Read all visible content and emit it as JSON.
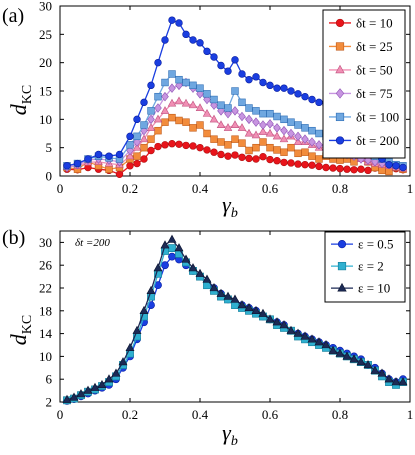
{
  "chart_data": [
    {
      "type": "line",
      "panel_label": "(a)",
      "xlabel": "γ",
      "xlabel_sub": "b",
      "ylabel": "d",
      "ylabel_sub": "KC",
      "xlim": [
        0,
        1
      ],
      "ylim": [
        0,
        30
      ],
      "xticks": [
        0,
        0.2,
        0.4,
        0.6,
        0.8,
        1
      ],
      "xtick_labels": [
        "0",
        "0.2",
        "0.4",
        "0.6",
        "0.8",
        "1"
      ],
      "yticks": [
        0,
        5,
        10,
        15,
        20,
        25,
        30
      ],
      "ytick_labels": [
        "0",
        "5",
        "10",
        "15",
        "20",
        "25",
        "30"
      ],
      "grid": false,
      "legend_position": "top-right",
      "series": [
        {
          "name": "δt = 10",
          "color": "#e8141b",
          "stroke": "#b01010",
          "marker": "circle",
          "x": [
            0.02,
            0.05,
            0.08,
            0.11,
            0.14,
            0.17,
            0.2,
            0.22,
            0.24,
            0.26,
            0.28,
            0.3,
            0.32,
            0.34,
            0.36,
            0.38,
            0.4,
            0.42,
            0.44,
            0.46,
            0.48,
            0.5,
            0.52,
            0.54,
            0.56,
            0.58,
            0.6,
            0.62,
            0.64,
            0.66,
            0.68,
            0.7,
            0.72,
            0.74,
            0.76,
            0.78,
            0.8,
            0.82,
            0.84,
            0.86,
            0.88,
            0.9,
            0.92,
            0.94,
            0.96,
            0.98
          ],
          "y": [
            1.2,
            1.1,
            1.5,
            1.2,
            1.0,
            0.3,
            1.8,
            2.2,
            3.0,
            4.5,
            5.2,
            5.5,
            5.7,
            5.6,
            5.4,
            5.3,
            5.0,
            4.6,
            4.2,
            3.8,
            3.5,
            3.7,
            3.3,
            3.1,
            3.0,
            3.4,
            2.9,
            2.7,
            2.4,
            2.3,
            2.1,
            2.0,
            1.9,
            1.7,
            1.5,
            1.4,
            1.3,
            1.2,
            1.1,
            1.2,
            1.0,
            1.4,
            1.0,
            1.6,
            1.3,
            1.1
          ]
        },
        {
          "name": "δt = 25",
          "color": "#f28c3c",
          "stroke": "#c05a18",
          "marker": "square",
          "x": [
            0.02,
            0.05,
            0.08,
            0.11,
            0.14,
            0.17,
            0.2,
            0.22,
            0.24,
            0.26,
            0.28,
            0.3,
            0.32,
            0.34,
            0.36,
            0.38,
            0.4,
            0.42,
            0.44,
            0.46,
            0.48,
            0.5,
            0.52,
            0.54,
            0.56,
            0.58,
            0.6,
            0.62,
            0.64,
            0.66,
            0.68,
            0.7,
            0.72,
            0.74,
            0.76,
            0.78,
            0.8,
            0.82,
            0.84,
            0.86,
            0.88,
            0.9,
            0.92,
            0.94,
            0.96,
            0.98
          ],
          "y": [
            1.5,
            1.2,
            2.5,
            1.8,
            1.2,
            1.5,
            3.0,
            3.5,
            5.0,
            6.5,
            8.0,
            9.5,
            10.3,
            9.8,
            9.5,
            8.5,
            9.0,
            7.5,
            6.5,
            6.0,
            5.5,
            6.5,
            5.8,
            4.5,
            5.0,
            6.0,
            5.0,
            4.6,
            4.2,
            5.0,
            4.0,
            4.2,
            3.5,
            3.0,
            3.5,
            3.0,
            2.8,
            3.0,
            2.5,
            4.0,
            2.5,
            1.5,
            1.0,
            0.8,
            1.5,
            1.2
          ]
        },
        {
          "name": "δt = 50",
          "color": "#f08fb4",
          "stroke": "#c0507e",
          "marker": "triangle",
          "x": [
            0.02,
            0.05,
            0.08,
            0.11,
            0.14,
            0.17,
            0.2,
            0.22,
            0.24,
            0.26,
            0.28,
            0.3,
            0.32,
            0.34,
            0.36,
            0.38,
            0.4,
            0.42,
            0.44,
            0.46,
            0.48,
            0.5,
            0.52,
            0.54,
            0.56,
            0.58,
            0.6,
            0.62,
            0.64,
            0.66,
            0.68,
            0.7,
            0.72,
            0.74,
            0.76,
            0.78,
            0.8,
            0.82,
            0.84,
            0.86,
            0.88,
            0.9,
            0.92,
            0.94,
            0.96,
            0.98
          ],
          "y": [
            1.6,
            1.8,
            2.4,
            2.5,
            2.2,
            2.0,
            3.5,
            5.0,
            6.5,
            8.5,
            10.0,
            11.5,
            12.8,
            13.2,
            12.8,
            12.5,
            12.0,
            11.0,
            10.0,
            9.0,
            8.5,
            9.0,
            8.5,
            7.5,
            7.2,
            7.8,
            7.5,
            7.0,
            6.5,
            7.0,
            6.0,
            6.0,
            5.5,
            5.0,
            5.0,
            4.5,
            4.0,
            3.8,
            3.5,
            3.0,
            2.5,
            2.2,
            2.0,
            1.8,
            1.5,
            1.3
          ]
        },
        {
          "name": "δt = 75",
          "color": "#c795e0",
          "stroke": "#8e52b5",
          "marker": "diamond",
          "x": [
            0.02,
            0.05,
            0.08,
            0.11,
            0.14,
            0.17,
            0.2,
            0.22,
            0.24,
            0.26,
            0.28,
            0.3,
            0.32,
            0.34,
            0.36,
            0.38,
            0.4,
            0.42,
            0.44,
            0.46,
            0.48,
            0.5,
            0.52,
            0.54,
            0.56,
            0.58,
            0.6,
            0.62,
            0.64,
            0.66,
            0.68,
            0.7,
            0.72,
            0.74,
            0.76,
            0.78,
            0.8,
            0.82,
            0.84,
            0.86,
            0.88,
            0.9,
            0.92,
            0.94,
            0.96,
            0.98
          ],
          "y": [
            1.5,
            2.0,
            2.8,
            3.0,
            2.8,
            2.5,
            4.5,
            6.0,
            8.0,
            10.0,
            12.0,
            14.0,
            15.5,
            16.0,
            16.5,
            15.5,
            14.5,
            13.5,
            12.5,
            11.5,
            11.0,
            11.5,
            10.5,
            10.0,
            9.5,
            9.0,
            9.2,
            8.5,
            8.0,
            7.5,
            7.0,
            6.5,
            6.0,
            5.5,
            5.0,
            4.5,
            4.2,
            3.8,
            3.5,
            3.0,
            2.8,
            2.5,
            2.2,
            2.0,
            1.8,
            1.6
          ]
        },
        {
          "name": "δt = 100",
          "color": "#6fa7e0",
          "stroke": "#2e6db5",
          "marker": "square",
          "x": [
            0.02,
            0.05,
            0.08,
            0.11,
            0.14,
            0.17,
            0.2,
            0.22,
            0.24,
            0.26,
            0.28,
            0.3,
            0.32,
            0.34,
            0.36,
            0.38,
            0.4,
            0.42,
            0.44,
            0.46,
            0.48,
            0.5,
            0.52,
            0.54,
            0.56,
            0.58,
            0.6,
            0.62,
            0.64,
            0.66,
            0.68,
            0.7,
            0.72,
            0.74,
            0.76,
            0.78,
            0.8,
            0.82,
            0.84,
            0.86,
            0.88,
            0.9,
            0.92,
            0.94,
            0.96,
            0.98
          ],
          "y": [
            1.8,
            2.2,
            3.0,
            3.5,
            3.2,
            3.0,
            5.5,
            7.0,
            9.0,
            11.5,
            14.0,
            16.5,
            18.0,
            17.0,
            16.5,
            16.0,
            15.5,
            14.5,
            13.5,
            12.5,
            12.0,
            15.0,
            13.0,
            12.0,
            11.5,
            11.0,
            11.0,
            10.5,
            10.0,
            9.5,
            9.0,
            8.5,
            8.0,
            7.5,
            7.0,
            6.5,
            6.0,
            5.5,
            5.0,
            4.5,
            4.0,
            3.5,
            3.0,
            2.5,
            2.0,
            1.8
          ]
        },
        {
          "name": "δt = 200",
          "color": "#1a3ee0",
          "stroke": "#0a1ea0",
          "marker": "circle",
          "x": [
            0.02,
            0.05,
            0.08,
            0.11,
            0.14,
            0.17,
            0.2,
            0.22,
            0.24,
            0.26,
            0.28,
            0.3,
            0.32,
            0.34,
            0.36,
            0.38,
            0.4,
            0.42,
            0.44,
            0.46,
            0.48,
            0.5,
            0.52,
            0.54,
            0.56,
            0.58,
            0.6,
            0.62,
            0.64,
            0.66,
            0.68,
            0.7,
            0.72,
            0.74,
            0.76,
            0.78,
            0.8,
            0.82,
            0.84,
            0.86,
            0.88,
            0.9,
            0.92,
            0.94,
            0.96,
            0.98
          ],
          "y": [
            1.8,
            2.2,
            3.0,
            3.8,
            3.5,
            3.8,
            7.0,
            10.0,
            13.0,
            16.0,
            20.0,
            24.0,
            27.5,
            27.0,
            25.0,
            24.0,
            23.5,
            22.0,
            21.0,
            19.5,
            18.5,
            20.5,
            18.0,
            17.0,
            17.5,
            16.5,
            16.0,
            15.5,
            15.5,
            15.0,
            14.5,
            14.0,
            13.5,
            13.0,
            12.5,
            11.5,
            10.5,
            9.5,
            8.5,
            7.0,
            5.5,
            4.0,
            3.0,
            2.0,
            1.8,
            1.5
          ]
        }
      ]
    },
    {
      "type": "line",
      "panel_label": "(b)",
      "annotation": "δt =200",
      "xlabel": "γ",
      "xlabel_sub": "b",
      "ylabel": "d",
      "ylabel_sub": "KC",
      "xlim": [
        0,
        1
      ],
      "ylim": [
        2,
        32
      ],
      "xticks": [
        0,
        0.2,
        0.4,
        0.6,
        0.8,
        1
      ],
      "xtick_labels": [
        "0",
        "0.2",
        "0.4",
        "0.6",
        "0.8",
        "1"
      ],
      "yticks": [
        2,
        6,
        10,
        14,
        18,
        22,
        26,
        30
      ],
      "ytick_labels": [
        "2",
        "6",
        "10",
        "14",
        "18",
        "22",
        "26",
        "30"
      ],
      "grid": false,
      "legend_position": "top-right",
      "series": [
        {
          "name": "ε = 0.5",
          "color": "#1a3ee0",
          "stroke": "#0a1ea0",
          "marker": "circle",
          "x": [
            0.02,
            0.04,
            0.06,
            0.08,
            0.1,
            0.12,
            0.14,
            0.16,
            0.18,
            0.2,
            0.22,
            0.24,
            0.26,
            0.28,
            0.3,
            0.32,
            0.34,
            0.36,
            0.38,
            0.4,
            0.42,
            0.44,
            0.46,
            0.48,
            0.5,
            0.52,
            0.54,
            0.56,
            0.58,
            0.6,
            0.62,
            0.64,
            0.66,
            0.68,
            0.7,
            0.72,
            0.74,
            0.76,
            0.78,
            0.8,
            0.82,
            0.84,
            0.86,
            0.88,
            0.9,
            0.92,
            0.94,
            0.96,
            0.98
          ],
          "y": [
            2.2,
            2.5,
            3.0,
            3.5,
            4.0,
            4.5,
            5.0,
            6.0,
            8.0,
            10.0,
            13.0,
            16.0,
            19.0,
            22.5,
            26.0,
            27.5,
            27.0,
            26.0,
            25.0,
            24.0,
            23.0,
            22.0,
            21.0,
            20.0,
            19.5,
            19.0,
            18.5,
            18.0,
            17.0,
            16.5,
            16.0,
            15.5,
            14.5,
            14.0,
            13.5,
            13.0,
            12.5,
            12.0,
            11.5,
            11.0,
            10.5,
            10.0,
            9.5,
            8.5,
            8.0,
            7.0,
            6.0,
            5.5,
            6.0
          ]
        },
        {
          "name": "ε = 2",
          "color": "#2fb0d0",
          "stroke": "#157d99",
          "marker": "square",
          "x": [
            0.02,
            0.04,
            0.06,
            0.08,
            0.1,
            0.12,
            0.14,
            0.16,
            0.18,
            0.2,
            0.22,
            0.24,
            0.26,
            0.28,
            0.3,
            0.32,
            0.34,
            0.36,
            0.38,
            0.4,
            0.42,
            0.44,
            0.46,
            0.48,
            0.5,
            0.52,
            0.54,
            0.56,
            0.58,
            0.6,
            0.62,
            0.64,
            0.66,
            0.68,
            0.7,
            0.72,
            0.74,
            0.76,
            0.78,
            0.8,
            0.82,
            0.84,
            0.86,
            0.88,
            0.9,
            0.92,
            0.94,
            0.96,
            0.98
          ],
          "y": [
            2.3,
            2.6,
            3.2,
            3.8,
            4.2,
            4.8,
            5.5,
            6.5,
            8.5,
            10.5,
            13.5,
            17.0,
            20.5,
            24.5,
            28.5,
            29.0,
            28.0,
            26.5,
            25.0,
            24.0,
            22.5,
            21.5,
            20.5,
            20.0,
            19.0,
            18.5,
            18.0,
            17.5,
            17.0,
            16.5,
            15.5,
            15.0,
            14.5,
            13.5,
            13.0,
            12.5,
            12.0,
            11.5,
            11.0,
            10.5,
            10.0,
            9.5,
            9.0,
            8.5,
            7.5,
            6.5,
            5.5,
            5.0,
            5.5
          ]
        },
        {
          "name": "ε = 10",
          "color": "#1c2a55",
          "stroke": "#0c1430",
          "marker": "triangle",
          "x": [
            0.02,
            0.04,
            0.06,
            0.08,
            0.1,
            0.12,
            0.14,
            0.16,
            0.18,
            0.2,
            0.22,
            0.24,
            0.26,
            0.28,
            0.3,
            0.32,
            0.34,
            0.36,
            0.38,
            0.4,
            0.42,
            0.44,
            0.46,
            0.48,
            0.5,
            0.52,
            0.54,
            0.56,
            0.58,
            0.6,
            0.62,
            0.64,
            0.66,
            0.68,
            0.7,
            0.72,
            0.74,
            0.76,
            0.78,
            0.8,
            0.82,
            0.84,
            0.86,
            0.88,
            0.9,
            0.92,
            0.94,
            0.96,
            0.98
          ],
          "y": [
            2.4,
            2.8,
            3.4,
            4.0,
            4.5,
            5.0,
            6.0,
            7.0,
            9.0,
            11.5,
            14.5,
            18.0,
            21.5,
            25.5,
            29.5,
            30.5,
            29.0,
            27.0,
            25.5,
            24.5,
            23.5,
            22.0,
            21.0,
            20.5,
            20.0,
            19.0,
            18.5,
            18.0,
            17.5,
            16.5,
            16.0,
            15.5,
            14.5,
            14.0,
            13.5,
            13.0,
            12.5,
            12.0,
            11.0,
            10.5,
            10.0,
            9.5,
            9.0,
            8.5,
            7.5,
            7.0,
            6.0,
            5.5,
            5.5
          ]
        }
      ]
    }
  ]
}
